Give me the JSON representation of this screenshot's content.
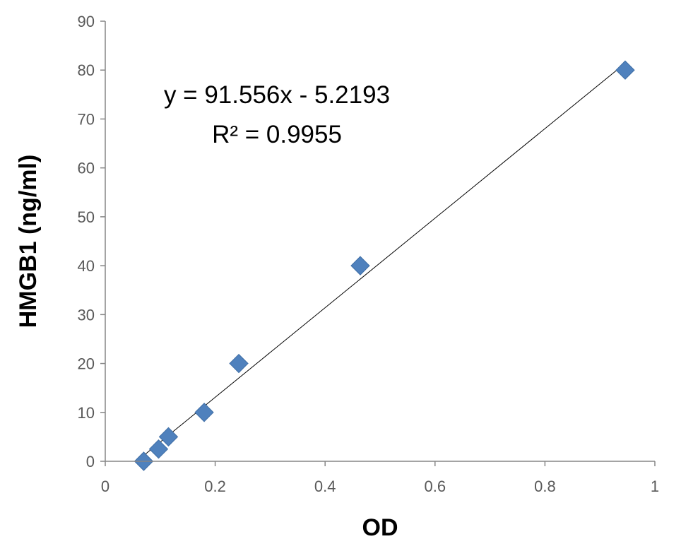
{
  "chart_data": {
    "type": "scatter",
    "xlabel": "OD",
    "ylabel": "HMGB1 (ng/ml)",
    "xlim": [
      0,
      1
    ],
    "ylim": [
      0,
      90
    ],
    "x_ticks": [
      0,
      0.2,
      0.4,
      0.6,
      0.8,
      1
    ],
    "x_tick_labels": [
      "0",
      "0.2",
      "0.4",
      "0.6",
      "0.8",
      "1"
    ],
    "y_ticks": [
      0,
      10,
      20,
      30,
      40,
      50,
      60,
      70,
      80,
      90
    ],
    "y_tick_labels": [
      "0",
      "10",
      "20",
      "30",
      "40",
      "50",
      "60",
      "70",
      "80",
      "90"
    ],
    "grid": false,
    "legend": "none",
    "series": [
      {
        "marker": "diamond",
        "color": "#4F81BD",
        "points": [
          {
            "x": 0.07,
            "y": 0
          },
          {
            "x": 0.097,
            "y": 2.5
          },
          {
            "x": 0.115,
            "y": 5
          },
          {
            "x": 0.18,
            "y": 10
          },
          {
            "x": 0.243,
            "y": 20
          },
          {
            "x": 0.464,
            "y": 40
          },
          {
            "x": 0.946,
            "y": 80
          }
        ]
      }
    ],
    "trendline": {
      "type": "linear",
      "slope": 91.556,
      "intercept": -5.2193,
      "x_range": [
        0.07,
        0.946
      ],
      "color": "#000000"
    },
    "annotations": [
      {
        "text": "y = 91.556x - 5.2193"
      },
      {
        "text": "R² = 0.9955"
      }
    ]
  }
}
